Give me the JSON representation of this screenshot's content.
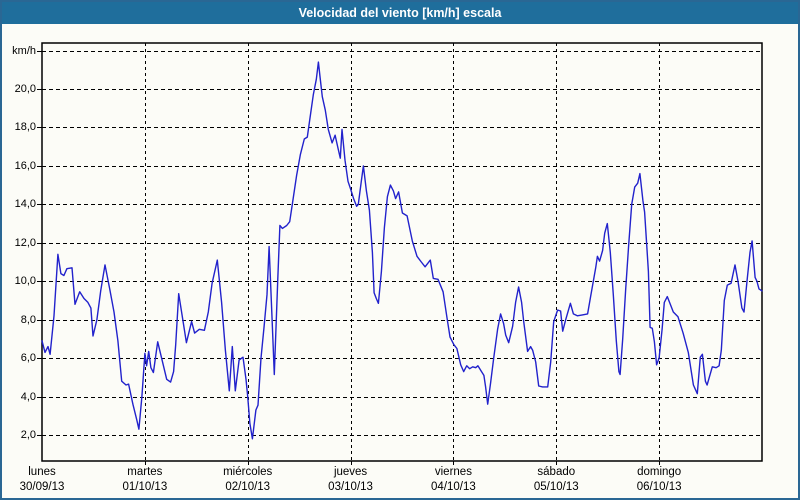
{
  "window": {
    "title": "Velocidad del viento [km/h] escala"
  },
  "colors": {
    "titlebar_bg": "#1f6e9c",
    "outer_border": "#2a6794",
    "page_bg": "#fcfcf7",
    "line": "#2222cc",
    "grid": "#000000",
    "text": "#000000",
    "title_text": "#ffffff"
  },
  "chart_data": {
    "type": "line",
    "title": "Velocidad del viento [km/h] escala",
    "ylabel": "km/h",
    "xlabel": "",
    "grid": "dashed",
    "legend_position": "none",
    "ylim_gridlines": [
      2,
      22
    ],
    "y_tick_step": 2,
    "y_ticks": [
      {
        "value": 20,
        "label": "20,0"
      },
      {
        "value": 18,
        "label": "18,0"
      },
      {
        "value": 16,
        "label": "16,0"
      },
      {
        "value": 14,
        "label": "14,0"
      },
      {
        "value": 12,
        "label": "12,0"
      },
      {
        "value": 10,
        "label": "10,0"
      },
      {
        "value": 8,
        "label": "8,0"
      },
      {
        "value": 6,
        "label": "6,0"
      },
      {
        "value": 4,
        "label": "4,0"
      },
      {
        "value": 2,
        "label": "2,0"
      }
    ],
    "x_days": [
      {
        "name": "lunes",
        "date": "30/09/13"
      },
      {
        "name": "martes",
        "date": "01/10/13"
      },
      {
        "name": "miércoles",
        "date": "02/10/13"
      },
      {
        "name": "jueves",
        "date": "03/10/13"
      },
      {
        "name": "viernes",
        "date": "04/10/13"
      },
      {
        "name": "sábado",
        "date": "05/10/13"
      },
      {
        "name": "domingo",
        "date": "06/10/13"
      }
    ],
    "x_total_hours": 168,
    "series": [
      {
        "name": "Velocidad del viento [km/h]",
        "color": "#2222cc",
        "points": [
          [
            0,
            6.9
          ],
          [
            0.7,
            6.3
          ],
          [
            1.4,
            6.6
          ],
          [
            1.9,
            6.2
          ],
          [
            2.8,
            8.2
          ],
          [
            3.7,
            11.4
          ],
          [
            4.4,
            10.4
          ],
          [
            5.1,
            10.3
          ],
          [
            5.8,
            10.65
          ],
          [
            7,
            10.7
          ],
          [
            7.7,
            8.8
          ],
          [
            8.8,
            9.45
          ],
          [
            9.8,
            9.1
          ],
          [
            10.7,
            8.9
          ],
          [
            11.4,
            8.6
          ],
          [
            11.9,
            7.15
          ],
          [
            12.8,
            8
          ],
          [
            13.7,
            9.5
          ],
          [
            14.7,
            10.85
          ],
          [
            15.8,
            9.6
          ],
          [
            16.8,
            8.4
          ],
          [
            17.7,
            6.9
          ],
          [
            18.6,
            4.8
          ],
          [
            19.6,
            4.6
          ],
          [
            20.2,
            4.65
          ],
          [
            21.2,
            3.6
          ],
          [
            22.1,
            2.8
          ],
          [
            22.6,
            2.3
          ],
          [
            23.3,
            4
          ],
          [
            24,
            6.25
          ],
          [
            24.4,
            5.6
          ],
          [
            24.9,
            6.35
          ],
          [
            25.4,
            5.5
          ],
          [
            26,
            5.25
          ],
          [
            27,
            6.85
          ],
          [
            27.9,
            6
          ],
          [
            29.1,
            4.9
          ],
          [
            30,
            4.75
          ],
          [
            30.7,
            5.3
          ],
          [
            31.2,
            6.7
          ],
          [
            31.9,
            9.35
          ],
          [
            33,
            7.8
          ],
          [
            33.7,
            6.8
          ],
          [
            34.9,
            7.9
          ],
          [
            35.6,
            7.3
          ],
          [
            36.7,
            7.5
          ],
          [
            37.9,
            7.45
          ],
          [
            38.8,
            8.4
          ],
          [
            39.7,
            9.9
          ],
          [
            40.9,
            11.1
          ],
          [
            41.9,
            8.9
          ],
          [
            42.8,
            6.4
          ],
          [
            43.7,
            4.3
          ],
          [
            44.4,
            6.6
          ],
          [
            45.1,
            4.3
          ],
          [
            46,
            5.9
          ],
          [
            46.9,
            6.05
          ],
          [
            47.6,
            4.9
          ],
          [
            48,
            4
          ],
          [
            48.5,
            2.6
          ],
          [
            49.1,
            1.8
          ],
          [
            49.9,
            3.3
          ],
          [
            50.4,
            3.55
          ],
          [
            51.1,
            6
          ],
          [
            51.8,
            7.6
          ],
          [
            52.5,
            9.3
          ],
          [
            53,
            11.8
          ],
          [
            53.7,
            8
          ],
          [
            54.2,
            5.15
          ],
          [
            55,
            10
          ],
          [
            55.5,
            12.9
          ],
          [
            56.1,
            12.75
          ],
          [
            57.1,
            12.9
          ],
          [
            57.8,
            13.1
          ],
          [
            58.4,
            14
          ],
          [
            59.4,
            15.5
          ],
          [
            60.3,
            16.6
          ],
          [
            61.2,
            17.4
          ],
          [
            61.9,
            17.5
          ],
          [
            62.6,
            18.6
          ],
          [
            63.3,
            19.7
          ],
          [
            64,
            20.5
          ],
          [
            64.5,
            21.4
          ],
          [
            64.9,
            20.6
          ],
          [
            65.4,
            19.6
          ],
          [
            66.1,
            18.9
          ],
          [
            66.8,
            17.9
          ],
          [
            67.7,
            17.2
          ],
          [
            68.4,
            17.6
          ],
          [
            69.1,
            16.9
          ],
          [
            69.6,
            16.4
          ],
          [
            70,
            17.9
          ],
          [
            70.7,
            16.3
          ],
          [
            71.4,
            15.2
          ],
          [
            72,
            14.8
          ],
          [
            72.7,
            14.3
          ],
          [
            73.4,
            13.9
          ],
          [
            73.8,
            14
          ],
          [
            74.5,
            15.2
          ],
          [
            75,
            16
          ],
          [
            75.7,
            14.7
          ],
          [
            76.4,
            13.7
          ],
          [
            77.1,
            11.5
          ],
          [
            77.5,
            9.4
          ],
          [
            78,
            9.1
          ],
          [
            78.5,
            8.85
          ],
          [
            79.2,
            10.5
          ],
          [
            79.9,
            12.8
          ],
          [
            80.6,
            14.4
          ],
          [
            81.3,
            15
          ],
          [
            82,
            14.7
          ],
          [
            82.5,
            14.3
          ],
          [
            83.2,
            14.65
          ],
          [
            84.1,
            13.55
          ],
          [
            85.2,
            13.4
          ],
          [
            86.4,
            12.1
          ],
          [
            87.5,
            11.3
          ],
          [
            88.5,
            11
          ],
          [
            89.4,
            10.75
          ],
          [
            90.6,
            11.1
          ],
          [
            91.3,
            10.15
          ],
          [
            92.4,
            10.1
          ],
          [
            93.6,
            9.45
          ],
          [
            94.5,
            8.1
          ],
          [
            95.2,
            7.1
          ],
          [
            96.1,
            6.7
          ],
          [
            96.8,
            6.5
          ],
          [
            97.7,
            5.65
          ],
          [
            98.4,
            5.3
          ],
          [
            99.1,
            5.6
          ],
          [
            99.8,
            5.45
          ],
          [
            100.5,
            5.55
          ],
          [
            101.2,
            5.5
          ],
          [
            101.7,
            5.6
          ],
          [
            102.4,
            5.35
          ],
          [
            103.1,
            5.1
          ],
          [
            103.5,
            4.5
          ],
          [
            104,
            3.6
          ],
          [
            104.7,
            4.75
          ],
          [
            105.4,
            6
          ],
          [
            106.3,
            7.5
          ],
          [
            107,
            8.3
          ],
          [
            107.7,
            7.8
          ],
          [
            108.2,
            7.2
          ],
          [
            108.9,
            6.8
          ],
          [
            109.8,
            7.65
          ],
          [
            110.5,
            8.9
          ],
          [
            111.2,
            9.7
          ],
          [
            111.9,
            8.9
          ],
          [
            112.4,
            7.9
          ],
          [
            113.3,
            6.35
          ],
          [
            114,
            6.6
          ],
          [
            114.5,
            6.4
          ],
          [
            115.2,
            5.8
          ],
          [
            115.9,
            4.55
          ],
          [
            116.8,
            4.5
          ],
          [
            118,
            4.5
          ],
          [
            118.7,
            5.8
          ],
          [
            119.4,
            7.9
          ],
          [
            120.3,
            8.5
          ],
          [
            121,
            8.45
          ],
          [
            121.5,
            7.4
          ],
          [
            122.2,
            8
          ],
          [
            123.3,
            8.85
          ],
          [
            124,
            8.3
          ],
          [
            124.9,
            8.2
          ],
          [
            126.1,
            8.25
          ],
          [
            127.3,
            8.3
          ],
          [
            128,
            9.2
          ],
          [
            129.2,
            10.7
          ],
          [
            129.6,
            11.3
          ],
          [
            130.1,
            11.05
          ],
          [
            130.8,
            11.6
          ],
          [
            131.3,
            12.5
          ],
          [
            131.9,
            13
          ],
          [
            132.6,
            11.5
          ],
          [
            133.3,
            9.3
          ],
          [
            134,
            6.9
          ],
          [
            134.6,
            5.3
          ],
          [
            134.9,
            5.15
          ],
          [
            135.5,
            7
          ],
          [
            136.2,
            9.6
          ],
          [
            136.9,
            11.9
          ],
          [
            137.6,
            14
          ],
          [
            138.3,
            14.9
          ],
          [
            139,
            15.1
          ],
          [
            139.5,
            15.6
          ],
          [
            140.2,
            14.2
          ],
          [
            140.6,
            13.6
          ],
          [
            141.1,
            11.9
          ],
          [
            141.5,
            10.5
          ],
          [
            141.9,
            7.6
          ],
          [
            142.4,
            7.55
          ],
          [
            142.9,
            6.85
          ],
          [
            143.4,
            5.65
          ],
          [
            144,
            6
          ],
          [
            144.7,
            7.5
          ],
          [
            145.2,
            8.9
          ],
          [
            145.9,
            9.2
          ],
          [
            146.6,
            8.8
          ],
          [
            147.3,
            8.4
          ],
          [
            148.4,
            8.15
          ],
          [
            149.6,
            7.3
          ],
          [
            150.8,
            6.3
          ],
          [
            152,
            4.6
          ],
          [
            152.9,
            4.15
          ],
          [
            153.6,
            6.05
          ],
          [
            154.1,
            6.2
          ],
          [
            154.8,
            4.8
          ],
          [
            155.2,
            4.6
          ],
          [
            156.4,
            5.55
          ],
          [
            157.3,
            5.5
          ],
          [
            158,
            5.6
          ],
          [
            158.5,
            6.4
          ],
          [
            159.2,
            9
          ],
          [
            159.9,
            9.8
          ],
          [
            160.8,
            9.9
          ],
          [
            161.7,
            10.85
          ],
          [
            162.4,
            10
          ],
          [
            163.3,
            8.6
          ],
          [
            163.8,
            8.4
          ],
          [
            164.5,
            10
          ],
          [
            165.2,
            11.5
          ],
          [
            165.7,
            12.1
          ],
          [
            166.4,
            10.2
          ],
          [
            166.8,
            10
          ],
          [
            167.3,
            9.6
          ],
          [
            168,
            9.5
          ]
        ]
      }
    ]
  }
}
